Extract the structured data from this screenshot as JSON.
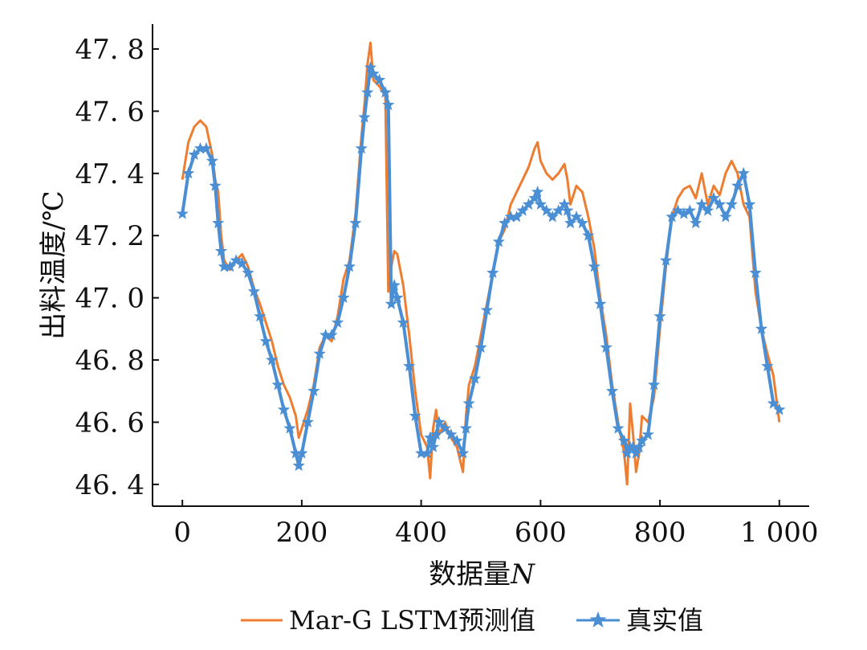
{
  "chart_data": {
    "type": "line",
    "xlabel_main": "数据量",
    "xlabel_var": "N",
    "ylabel": "出料温度/℃",
    "xlim": [
      -50,
      1050
    ],
    "ylim": [
      46.33,
      47.88
    ],
    "xticks": [
      {
        "value": 0,
        "label": "0"
      },
      {
        "value": 200,
        "label": "200"
      },
      {
        "value": 400,
        "label": "400"
      },
      {
        "value": 600,
        "label": "600"
      },
      {
        "value": 800,
        "label": "800"
      },
      {
        "value": 1000,
        "label": "1 000"
      }
    ],
    "yticks": [
      {
        "value": 46.4,
        "label": "46. 4"
      },
      {
        "value": 46.6,
        "label": "46. 6"
      },
      {
        "value": 46.8,
        "label": "46. 8"
      },
      {
        "value": 47.0,
        "label": "47. 0"
      },
      {
        "value": 47.2,
        "label": "47. 2"
      },
      {
        "value": 47.4,
        "label": "47. 4"
      },
      {
        "value": 47.6,
        "label": "47. 6"
      },
      {
        "value": 47.8,
        "label": "47. 8"
      }
    ],
    "grid": false,
    "legend_position": "bottom",
    "series": [
      {
        "name": "Mar-G LSTM预测值",
        "color": "#ED7D31",
        "marker": "none",
        "x": [
          0,
          10,
          20,
          30,
          40,
          50,
          55,
          60,
          65,
          70,
          80,
          90,
          100,
          110,
          120,
          130,
          140,
          150,
          160,
          170,
          180,
          190,
          195,
          200,
          210,
          220,
          230,
          240,
          250,
          260,
          270,
          280,
          290,
          300,
          305,
          310,
          315,
          320,
          330,
          340,
          345,
          350,
          355,
          360,
          370,
          380,
          390,
          400,
          410,
          415,
          420,
          425,
          430,
          440,
          450,
          460,
          470,
          475,
          480,
          490,
          500,
          510,
          520,
          530,
          540,
          550,
          560,
          570,
          580,
          590,
          595,
          600,
          610,
          620,
          630,
          640,
          645,
          650,
          660,
          670,
          680,
          690,
          700,
          710,
          720,
          730,
          740,
          745,
          750,
          755,
          760,
          765,
          770,
          780,
          790,
          800,
          810,
          820,
          830,
          840,
          850,
          860,
          870,
          880,
          890,
          900,
          910,
          920,
          930,
          940,
          950,
          960,
          970,
          980,
          990,
          1000
        ],
        "y": [
          47.38,
          47.5,
          47.55,
          47.57,
          47.55,
          47.46,
          47.38,
          47.34,
          47.2,
          47.12,
          47.09,
          47.12,
          47.14,
          47.1,
          47.03,
          46.98,
          46.92,
          46.86,
          46.78,
          46.72,
          46.68,
          46.62,
          46.55,
          46.58,
          46.64,
          46.72,
          46.84,
          46.88,
          46.86,
          46.94,
          47.06,
          47.12,
          47.27,
          47.52,
          47.62,
          47.75,
          47.82,
          47.7,
          47.68,
          47.65,
          47.02,
          47.1,
          47.15,
          47.14,
          47.04,
          46.88,
          46.7,
          46.56,
          46.52,
          46.42,
          46.58,
          46.64,
          46.56,
          46.6,
          46.55,
          46.52,
          46.44,
          46.62,
          46.72,
          46.78,
          46.88,
          46.98,
          47.08,
          47.18,
          47.22,
          47.3,
          47.34,
          47.38,
          47.42,
          47.48,
          47.5,
          47.44,
          47.4,
          47.38,
          47.4,
          47.43,
          47.38,
          47.3,
          47.36,
          47.34,
          47.26,
          47.16,
          47.0,
          46.88,
          46.72,
          46.6,
          46.5,
          46.4,
          46.66,
          46.56,
          46.44,
          46.5,
          46.62,
          46.6,
          46.68,
          46.9,
          47.1,
          47.26,
          47.32,
          47.35,
          47.36,
          47.32,
          47.4,
          47.3,
          47.36,
          47.33,
          47.4,
          47.44,
          47.4,
          47.3,
          47.26,
          47.02,
          46.9,
          46.82,
          46.75,
          46.6
        ]
      },
      {
        "name": "真实值",
        "color": "#4A8ED4",
        "marker": "star",
        "x": [
          0,
          10,
          20,
          30,
          40,
          50,
          55,
          60,
          65,
          70,
          80,
          90,
          100,
          110,
          120,
          130,
          140,
          150,
          160,
          170,
          180,
          190,
          195,
          200,
          210,
          220,
          230,
          240,
          250,
          260,
          270,
          280,
          290,
          300,
          305,
          310,
          315,
          320,
          330,
          340,
          345,
          350,
          355,
          360,
          370,
          380,
          390,
          400,
          410,
          415,
          420,
          425,
          430,
          440,
          450,
          460,
          470,
          475,
          480,
          490,
          500,
          510,
          520,
          530,
          540,
          550,
          560,
          570,
          580,
          590,
          595,
          600,
          610,
          620,
          630,
          640,
          645,
          650,
          660,
          670,
          680,
          690,
          700,
          710,
          720,
          730,
          740,
          745,
          750,
          755,
          760,
          765,
          770,
          780,
          790,
          800,
          810,
          820,
          830,
          840,
          850,
          860,
          870,
          880,
          890,
          900,
          910,
          920,
          930,
          940,
          950,
          960,
          970,
          980,
          990,
          1000
        ],
        "y": [
          47.27,
          47.4,
          47.46,
          47.48,
          47.48,
          47.44,
          47.36,
          47.24,
          47.15,
          47.1,
          47.1,
          47.12,
          47.11,
          47.08,
          47.02,
          46.94,
          46.86,
          46.8,
          46.72,
          46.64,
          46.58,
          46.5,
          46.46,
          46.5,
          46.6,
          46.7,
          46.82,
          46.88,
          46.88,
          46.92,
          47.0,
          47.1,
          47.24,
          47.48,
          47.58,
          47.66,
          47.74,
          47.72,
          47.7,
          47.66,
          47.62,
          46.98,
          47.04,
          47.0,
          46.92,
          46.78,
          46.62,
          46.5,
          46.5,
          46.55,
          46.52,
          46.56,
          46.6,
          46.58,
          46.56,
          46.54,
          46.5,
          46.58,
          46.66,
          46.74,
          46.84,
          46.96,
          47.08,
          47.18,
          47.24,
          47.26,
          47.26,
          47.28,
          47.3,
          47.32,
          47.34,
          47.3,
          47.28,
          47.26,
          47.28,
          47.3,
          47.28,
          47.24,
          47.26,
          47.24,
          47.2,
          47.1,
          46.98,
          46.84,
          46.7,
          46.58,
          46.54,
          46.5,
          46.52,
          46.52,
          46.5,
          46.52,
          46.54,
          46.56,
          46.72,
          46.94,
          47.12,
          47.26,
          47.28,
          47.27,
          47.28,
          47.24,
          47.3,
          47.28,
          47.32,
          47.3,
          47.26,
          47.3,
          47.36,
          47.4,
          47.3,
          47.08,
          46.9,
          46.78,
          46.66,
          46.64
        ]
      }
    ]
  }
}
